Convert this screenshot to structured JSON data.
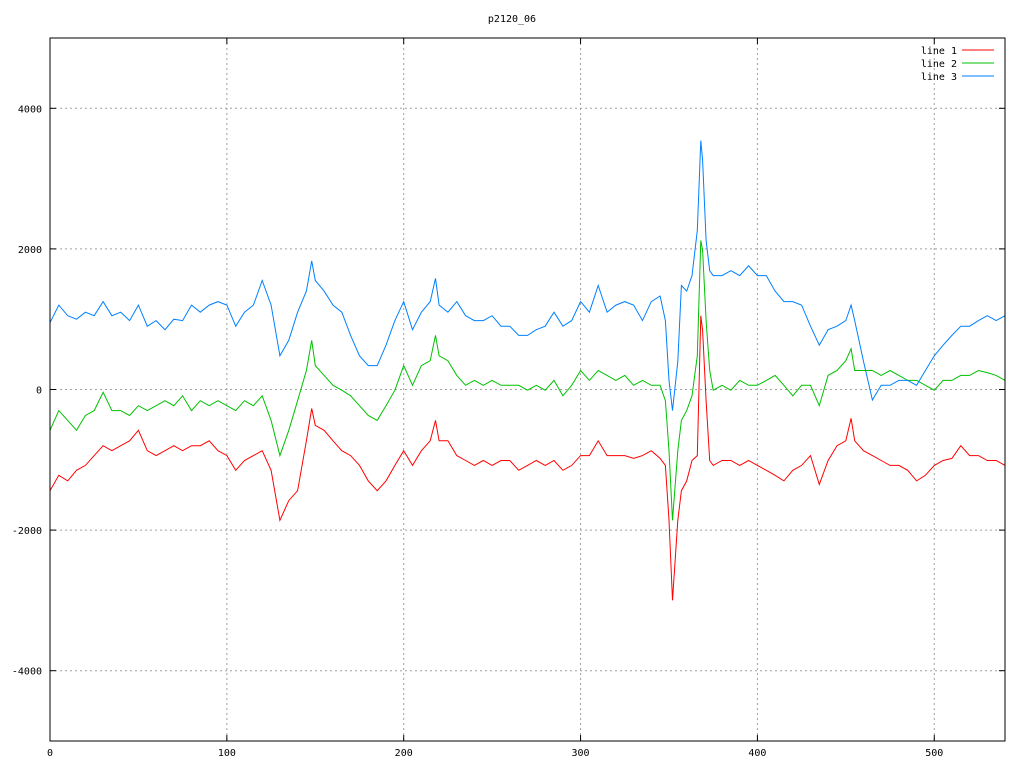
{
  "chart_data": {
    "type": "line",
    "title": "p2120_06",
    "xlabel": "",
    "ylabel": "",
    "xlim": [
      0,
      540
    ],
    "ylim": [
      -5000,
      5000
    ],
    "xticks": [
      0,
      100,
      200,
      300,
      400,
      500
    ],
    "yticks": [
      -4000,
      -2000,
      0,
      2000,
      4000
    ],
    "ytick_labels": [
      "-4000",
      "-2000",
      "0",
      "2000",
      "4000"
    ],
    "grid": true,
    "legend_position": "top-right",
    "x": [
      0,
      5,
      10,
      15,
      20,
      25,
      30,
      35,
      40,
      45,
      50,
      55,
      60,
      65,
      70,
      75,
      80,
      85,
      90,
      95,
      100,
      105,
      110,
      115,
      120,
      125,
      130,
      135,
      140,
      145,
      148,
      150,
      155,
      160,
      165,
      170,
      175,
      180,
      185,
      190,
      195,
      200,
      205,
      210,
      215,
      218,
      220,
      225,
      230,
      235,
      240,
      245,
      250,
      255,
      260,
      265,
      270,
      275,
      280,
      285,
      290,
      295,
      300,
      305,
      310,
      315,
      320,
      325,
      330,
      335,
      340,
      345,
      348,
      350,
      352,
      355,
      357,
      360,
      363,
      366,
      368,
      369,
      371,
      373,
      375,
      380,
      385,
      390,
      395,
      400,
      405,
      410,
      415,
      420,
      425,
      430,
      435,
      440,
      445,
      450,
      453,
      455,
      460,
      465,
      470,
      475,
      480,
      485,
      490,
      495,
      500,
      505,
      510,
      515,
      520,
      525,
      530,
      535,
      540
    ],
    "series": [
      {
        "name": "line 1",
        "color": "#ff0000",
        "values": [
          -1440,
          -1220,
          -1300,
          -1150,
          -1080,
          -940,
          -800,
          -870,
          -800,
          -730,
          -580,
          -870,
          -940,
          -870,
          -800,
          -870,
          -800,
          -800,
          -730,
          -870,
          -940,
          -1150,
          -1010,
          -940,
          -870,
          -1150,
          -1860,
          -1580,
          -1440,
          -730,
          -270,
          -510,
          -580,
          -730,
          -870,
          -940,
          -1080,
          -1300,
          -1440,
          -1300,
          -1080,
          -870,
          -1080,
          -870,
          -730,
          -440,
          -730,
          -730,
          -940,
          -1010,
          -1080,
          -1010,
          -1080,
          -1010,
          -1010,
          -1150,
          -1080,
          -1010,
          -1080,
          -1010,
          -1150,
          -1080,
          -940,
          -940,
          -730,
          -940,
          -940,
          -940,
          -980,
          -940,
          -870,
          -980,
          -1080,
          -1860,
          -3000,
          -1860,
          -1440,
          -1300,
          -1010,
          -940,
          1050,
          840,
          -160,
          -1010,
          -1080,
          -1010,
          -1010,
          -1080,
          -1010,
          -1080,
          -1150,
          -1220,
          -1300,
          -1150,
          -1080,
          -940,
          -1350,
          -1010,
          -800,
          -730,
          -410,
          -730,
          -870,
          -940,
          -1010,
          -1080,
          -1080,
          -1150,
          -1300,
          -1220,
          -1080,
          -1010,
          -980,
          -800,
          -940,
          -940,
          -1010,
          -1010,
          -1080
        ]
      },
      {
        "name": "line 2",
        "color": "#00c000",
        "values": [
          -580,
          -300,
          -440,
          -580,
          -370,
          -300,
          -40,
          -300,
          -300,
          -370,
          -230,
          -300,
          -230,
          -160,
          -230,
          -90,
          -300,
          -160,
          -230,
          -160,
          -230,
          -300,
          -160,
          -230,
          -90,
          -440,
          -940,
          -580,
          -160,
          270,
          700,
          340,
          200,
          60,
          -10,
          -90,
          -230,
          -370,
          -440,
          -230,
          -10,
          340,
          60,
          340,
          410,
          770,
          480,
          410,
          200,
          60,
          130,
          60,
          130,
          60,
          60,
          60,
          -10,
          60,
          -10,
          130,
          -90,
          60,
          270,
          130,
          270,
          200,
          130,
          200,
          60,
          130,
          60,
          60,
          -160,
          -870,
          -1860,
          -870,
          -440,
          -300,
          -90,
          480,
          2120,
          1980,
          980,
          270,
          -10,
          60,
          -10,
          130,
          60,
          60,
          130,
          200,
          60,
          -90,
          60,
          60,
          -230,
          200,
          270,
          410,
          580,
          270,
          270,
          270,
          200,
          270,
          200,
          130,
          130,
          60,
          -10,
          130,
          130,
          200,
          200,
          270,
          240,
          200,
          130
        ]
      },
      {
        "name": "line 3",
        "color": "#0080ff",
        "values": [
          950,
          1200,
          1050,
          1000,
          1100,
          1050,
          1250,
          1050,
          1100,
          980,
          1200,
          900,
          980,
          850,
          1000,
          980,
          1200,
          1100,
          1200,
          1250,
          1200,
          900,
          1100,
          1200,
          1550,
          1200,
          480,
          700,
          1100,
          1400,
          1830,
          1550,
          1400,
          1200,
          1100,
          770,
          480,
          340,
          340,
          630,
          980,
          1250,
          850,
          1100,
          1250,
          1580,
          1200,
          1100,
          1250,
          1050,
          980,
          980,
          1050,
          900,
          900,
          770,
          770,
          850,
          900,
          1100,
          900,
          980,
          1250,
          1100,
          1480,
          1100,
          1200,
          1250,
          1200,
          980,
          1250,
          1330,
          980,
          130,
          -300,
          400,
          1480,
          1400,
          1620,
          2260,
          3540,
          3260,
          2120,
          1690,
          1620,
          1620,
          1690,
          1620,
          1760,
          1620,
          1620,
          1400,
          1250,
          1250,
          1200,
          900,
          630,
          850,
          900,
          980,
          1200,
          980,
          400,
          -150,
          60,
          60,
          130,
          130,
          60,
          270,
          480,
          630,
          770,
          900,
          900,
          980,
          1050,
          980,
          1050
        ]
      }
    ]
  }
}
